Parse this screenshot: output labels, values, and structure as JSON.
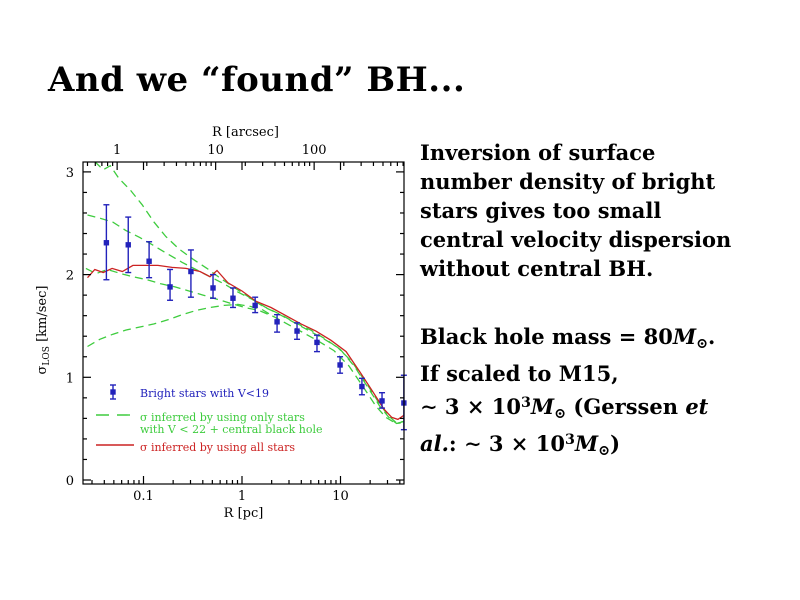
{
  "slide": {
    "title": "And we “found” BH...",
    "background_color": "#ffffff"
  },
  "right_text": {
    "para1_lines": [
      "Inversion of surface",
      "number density of bright",
      "stars gives too small",
      "central velocity dispersion",
      "without central BH."
    ],
    "para2_lines": [
      [
        {
          "t": "Black hole mass = 80"
        },
        {
          "t": "M",
          "i": true
        },
        {
          "t": "⊙",
          "sub": true
        },
        {
          "t": "."
        }
      ],
      [
        {
          "t": "If scaled to M15,"
        }
      ],
      [
        {
          "t": "∼ 3 × 10"
        },
        {
          "t": "3",
          "sup": true
        },
        {
          "t": "M",
          "i": true
        },
        {
          "t": "⊙",
          "sub": true
        },
        {
          "t": " (Gerssen "
        },
        {
          "t": "et",
          "i": true
        }
      ],
      [
        {
          "t": "al.",
          "i": true
        },
        {
          "t": ": ∼ 3 × 10"
        },
        {
          "t": "3",
          "sup": true
        },
        {
          "t": "M",
          "i": true
        },
        {
          "t": "⊙",
          "sub": true
        },
        {
          "t": ")"
        }
      ]
    ]
  },
  "chart_data": {
    "type": "scatter",
    "title": "",
    "xlabel_bottom": "R [pc]",
    "xlabel_top": "R [arcsec]",
    "ylabel": {
      "symbol": "σ",
      "subscript": "LOS",
      "unit": " [km/sec]"
    },
    "x_scale": "log",
    "xlim_pc": [
      0.0245,
      44.5
    ],
    "ylim": [
      -0.04,
      3.1
    ],
    "x_ticks_bottom_pc": [
      "0.1",
      "1",
      "10"
    ],
    "x_ticks_top_arcsec": [
      "1",
      "10",
      "100"
    ],
    "y_ticks": [
      "0",
      "1",
      "2",
      "3"
    ],
    "pc_per_arcsec": 0.054,
    "grid": "off",
    "legend_position": "lower-left-inside",
    "colors": {
      "points": "#2222bb",
      "green_model": "#3ecc3e",
      "red_model": "#cc2222",
      "axes": "#000000"
    },
    "legend": [
      {
        "style": "point-errorbar",
        "color": "#2222bb",
        "label_lines": [
          "Bright stars with V<19"
        ]
      },
      {
        "style": "dashed-line",
        "color": "#3ecc3e",
        "label_lines": [
          "σ inferred by using only stars",
          "with V < 22 + central black hole"
        ]
      },
      {
        "style": "solid-line",
        "color": "#cc2222",
        "label_lines": [
          "σ inferred by using all stars"
        ]
      }
    ],
    "points_series_name": "Bright stars with V<19",
    "points": [
      {
        "R": 0.042,
        "sigma": 2.31,
        "lo": 1.95,
        "hi": 2.68
      },
      {
        "R": 0.07,
        "sigma": 2.29,
        "lo": 2.02,
        "hi": 2.56
      },
      {
        "R": 0.114,
        "sigma": 2.13,
        "lo": 1.97,
        "hi": 2.32
      },
      {
        "R": 0.186,
        "sigma": 1.88,
        "lo": 1.75,
        "hi": 2.05
      },
      {
        "R": 0.303,
        "sigma": 2.03,
        "lo": 1.78,
        "hi": 2.24
      },
      {
        "R": 0.508,
        "sigma": 1.87,
        "lo": 1.77,
        "hi": 2.0
      },
      {
        "R": 0.81,
        "sigma": 1.77,
        "lo": 1.68,
        "hi": 1.87
      },
      {
        "R": 1.36,
        "sigma": 1.7,
        "lo": 1.63,
        "hi": 1.78
      },
      {
        "R": 2.27,
        "sigma": 1.54,
        "lo": 1.44,
        "hi": 1.61
      },
      {
        "R": 3.62,
        "sigma": 1.45,
        "lo": 1.37,
        "hi": 1.53
      },
      {
        "R": 5.77,
        "sigma": 1.34,
        "lo": 1.25,
        "hi": 1.41
      },
      {
        "R": 9.9,
        "sigma": 1.12,
        "lo": 1.04,
        "hi": 1.2
      },
      {
        "R": 16.5,
        "sigma": 0.91,
        "lo": 0.83,
        "hi": 0.99
      },
      {
        "R": 26.4,
        "sigma": 0.77,
        "lo": 0.7,
        "hi": 0.85
      },
      {
        "R": 44.0,
        "sigma": 0.75,
        "lo": 0.49,
        "hi": 1.02
      }
    ],
    "red_curve": [
      [
        0.027,
        1.97
      ],
      [
        0.032,
        2.05
      ],
      [
        0.039,
        2.02
      ],
      [
        0.048,
        2.06
      ],
      [
        0.061,
        2.03
      ],
      [
        0.078,
        2.09
      ],
      [
        0.104,
        2.09
      ],
      [
        0.14,
        2.09
      ],
      [
        0.195,
        2.07
      ],
      [
        0.27,
        2.06
      ],
      [
        0.375,
        2.03
      ],
      [
        0.473,
        1.98
      ],
      [
        0.557,
        2.04
      ],
      [
        0.72,
        1.92
      ],
      [
        1.0,
        1.84
      ],
      [
        1.39,
        1.74
      ],
      [
        1.97,
        1.68
      ],
      [
        2.8,
        1.6
      ],
      [
        3.97,
        1.52
      ],
      [
        5.63,
        1.45
      ],
      [
        8.0,
        1.36
      ],
      [
        11.4,
        1.25
      ],
      [
        15.8,
        1.05
      ],
      [
        21.3,
        0.86
      ],
      [
        27.6,
        0.69
      ],
      [
        33.2,
        0.61
      ],
      [
        38.3,
        0.59
      ],
      [
        44.0,
        0.63
      ]
    ],
    "green_curves": [
      [
        [
          0.032,
          3.1
        ],
        [
          0.039,
          3.02
        ],
        [
          0.046,
          3.06
        ],
        [
          0.056,
          2.94
        ],
        [
          0.074,
          2.82
        ],
        [
          0.097,
          2.68
        ],
        [
          0.128,
          2.51
        ],
        [
          0.169,
          2.37
        ],
        [
          0.229,
          2.25
        ],
        [
          0.318,
          2.15
        ],
        [
          0.441,
          2.06
        ],
        [
          0.612,
          1.96
        ],
        [
          0.849,
          1.87
        ],
        [
          1.18,
          1.78
        ],
        [
          1.63,
          1.69
        ],
        [
          2.32,
          1.62
        ],
        [
          3.29,
          1.54
        ],
        [
          4.67,
          1.46
        ],
        [
          6.62,
          1.38
        ],
        [
          9.39,
          1.29
        ],
        [
          13.1,
          1.15
        ],
        [
          18.1,
          0.95
        ],
        [
          24.6,
          0.75
        ],
        [
          30.3,
          0.63
        ],
        [
          36.6,
          0.56
        ],
        [
          44.0,
          0.57
        ]
      ],
      [
        [
          0.027,
          2.58
        ],
        [
          0.036,
          2.55
        ],
        [
          0.049,
          2.51
        ],
        [
          0.066,
          2.43
        ],
        [
          0.092,
          2.36
        ],
        [
          0.128,
          2.28
        ],
        [
          0.177,
          2.2
        ],
        [
          0.246,
          2.12
        ],
        [
          0.341,
          2.05
        ],
        [
          0.473,
          1.98
        ],
        [
          0.657,
          1.91
        ],
        [
          0.911,
          1.83
        ],
        [
          1.26,
          1.76
        ],
        [
          1.75,
          1.68
        ],
        [
          2.49,
          1.61
        ],
        [
          3.5,
          1.53
        ],
        [
          5.0,
          1.46
        ],
        [
          7.1,
          1.37
        ],
        [
          10.0,
          1.27
        ],
        [
          14.0,
          1.1
        ],
        [
          19.0,
          0.9
        ],
        [
          25.0,
          0.72
        ],
        [
          31.0,
          0.61
        ],
        [
          37.0,
          0.55
        ],
        [
          44.0,
          0.56
        ]
      ],
      [
        [
          0.026,
          2.06
        ],
        [
          0.033,
          2.01
        ],
        [
          0.043,
          2.05
        ],
        [
          0.059,
          2.01
        ],
        [
          0.078,
          1.98
        ],
        [
          0.108,
          1.95
        ],
        [
          0.15,
          1.91
        ],
        [
          0.209,
          1.88
        ],
        [
          0.29,
          1.84
        ],
        [
          0.402,
          1.8
        ],
        [
          0.557,
          1.76
        ],
        [
          0.773,
          1.72
        ],
        [
          1.07,
          1.68
        ],
        [
          1.49,
          1.65
        ],
        [
          2.11,
          1.59
        ],
        [
          3.0,
          1.51
        ],
        [
          4.26,
          1.43
        ],
        [
          6.04,
          1.35
        ],
        [
          8.57,
          1.26
        ],
        [
          12.2,
          1.11
        ],
        [
          16.9,
          0.91
        ],
        [
          22.9,
          0.72
        ],
        [
          28.9,
          0.61
        ],
        [
          36.6,
          0.55
        ],
        [
          44.0,
          0.57
        ]
      ],
      [
        [
          0.027,
          1.3
        ],
        [
          0.036,
          1.37
        ],
        [
          0.049,
          1.42
        ],
        [
          0.066,
          1.46
        ],
        [
          0.092,
          1.49
        ],
        [
          0.128,
          1.52
        ],
        [
          0.177,
          1.56
        ],
        [
          0.246,
          1.61
        ],
        [
          0.341,
          1.65
        ],
        [
          0.473,
          1.68
        ],
        [
          0.657,
          1.7
        ],
        [
          0.911,
          1.71
        ],
        [
          1.21,
          1.69
        ],
        [
          1.6,
          1.66
        ],
        [
          2.1,
          1.59
        ]
      ]
    ]
  }
}
